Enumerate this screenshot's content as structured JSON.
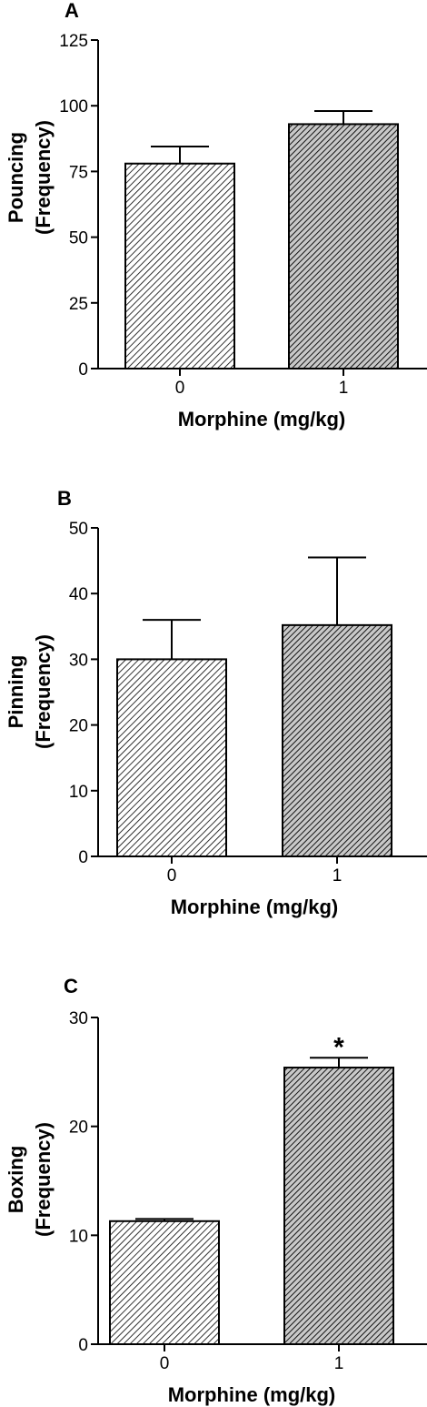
{
  "chart_data": [
    {
      "type": "bar",
      "panel_label": "A",
      "categories": [
        "0",
        "1"
      ],
      "values": [
        78,
        93
      ],
      "errors": [
        6.5,
        5
      ],
      "ylabel_line1": "Pouncing",
      "ylabel_line2": "(Frequency)",
      "xlabel": "Morphine (mg/kg)",
      "ylim": [
        0,
        125
      ],
      "yticks": [
        "0",
        "25",
        "50",
        "75",
        "100",
        "125"
      ],
      "significance": [
        "",
        ""
      ],
      "bar_fills": [
        "light-hatch",
        "dark-hatch"
      ]
    },
    {
      "type": "bar",
      "panel_label": "B",
      "categories": [
        "0",
        "1"
      ],
      "values": [
        30,
        35.2
      ],
      "errors": [
        6,
        10.3
      ],
      "ylabel_line1": "Pinning",
      "ylabel_line2": "(Frequency)",
      "xlabel": "Morphine (mg/kg)",
      "ylim": [
        0,
        50
      ],
      "yticks": [
        "0",
        "10",
        "20",
        "30",
        "40",
        "50"
      ],
      "significance": [
        "",
        ""
      ],
      "bar_fills": [
        "light-hatch",
        "dark-hatch"
      ]
    },
    {
      "type": "bar",
      "panel_label": "C",
      "categories": [
        "0",
        "1"
      ],
      "values": [
        11.3,
        25.4
      ],
      "errors": [
        0.2,
        0.9
      ],
      "ylabel_line1": "Boxing",
      "ylabel_line2": "(Frequency)",
      "xlabel": "Morphine (mg/kg)",
      "ylim": [
        0,
        30
      ],
      "yticks": [
        "0",
        "10",
        "20",
        "30"
      ],
      "significance": [
        "",
        "*"
      ],
      "bar_fills": [
        "light-hatch",
        "dark-hatch"
      ]
    }
  ]
}
